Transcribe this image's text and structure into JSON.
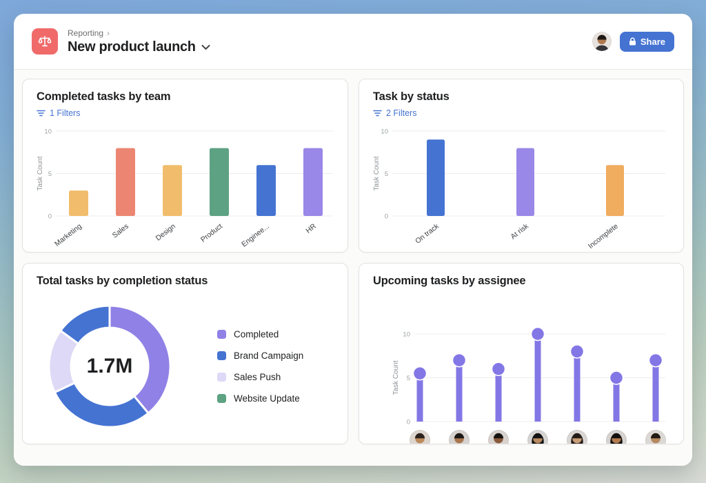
{
  "header": {
    "app_icon": "balance-scale-icon",
    "breadcrumb": "Reporting",
    "breadcrumb_chevron": "›",
    "title": "New product launch",
    "share_button": "Share"
  },
  "palette": {
    "accent_blue": "#4573D2",
    "header_icon_red": "#F06A6A",
    "lollipop_purple": "#8377E6"
  },
  "charts": {
    "completed_by_team": {
      "type": "bar",
      "title": "Completed tasks by team",
      "filters_label": "1 Filters",
      "ylabel": "Task Count",
      "yticks": [
        0,
        5,
        10
      ],
      "ylim": [
        0,
        10
      ],
      "categories": [
        "Marketing",
        "Sales",
        "Design",
        "Product",
        "Enginee...",
        "HR"
      ],
      "values": [
        3,
        8,
        6,
        8,
        6,
        8
      ],
      "colors": [
        "#F1BD6C",
        "#EC8672",
        "#F1BD6C",
        "#5DA283",
        "#4573D2",
        "#9988E8"
      ]
    },
    "task_by_status": {
      "type": "bar",
      "title": "Task by status",
      "filters_label": "2 Filters",
      "ylabel": "Task Count",
      "yticks": [
        0,
        5,
        10
      ],
      "ylim": [
        0,
        10
      ],
      "categories": [
        "On track",
        "At risk",
        "Incomplete"
      ],
      "values": [
        9,
        8,
        6
      ],
      "colors": [
        "#4573D2",
        "#9988E8",
        "#F0AC5F"
      ]
    },
    "total_by_completion": {
      "type": "donut",
      "title": "Total tasks by completion status",
      "center_label": "1.7M",
      "segments": [
        {
          "label": "Completed",
          "percent": 39,
          "color": "#9081E6"
        },
        {
          "label": "Brand Campaign",
          "percent": 29,
          "color": "#4573D2"
        },
        {
          "label": "Sales Push",
          "percent": 17,
          "color": "#DDD9F6"
        },
        {
          "label": "Website Update",
          "percent": 15,
          "color": "#4573D2"
        }
      ],
      "legend": [
        {
          "label": "Completed",
          "color": "#9081E6"
        },
        {
          "label": "Brand Campaign",
          "color": "#4573D2"
        },
        {
          "label": "Sales Push",
          "color": "#DDD9F6"
        },
        {
          "label": "Website Update",
          "color": "#5DA283"
        }
      ]
    },
    "upcoming_by_assignee": {
      "type": "lollipop",
      "title": "Upcoming tasks by assignee",
      "ylabel": "Task Count",
      "yticks": [
        0,
        5,
        10
      ],
      "ylim": [
        0,
        10
      ],
      "values": [
        5.5,
        7,
        6,
        10,
        8,
        5,
        7
      ],
      "assignee_count": 7
    }
  }
}
